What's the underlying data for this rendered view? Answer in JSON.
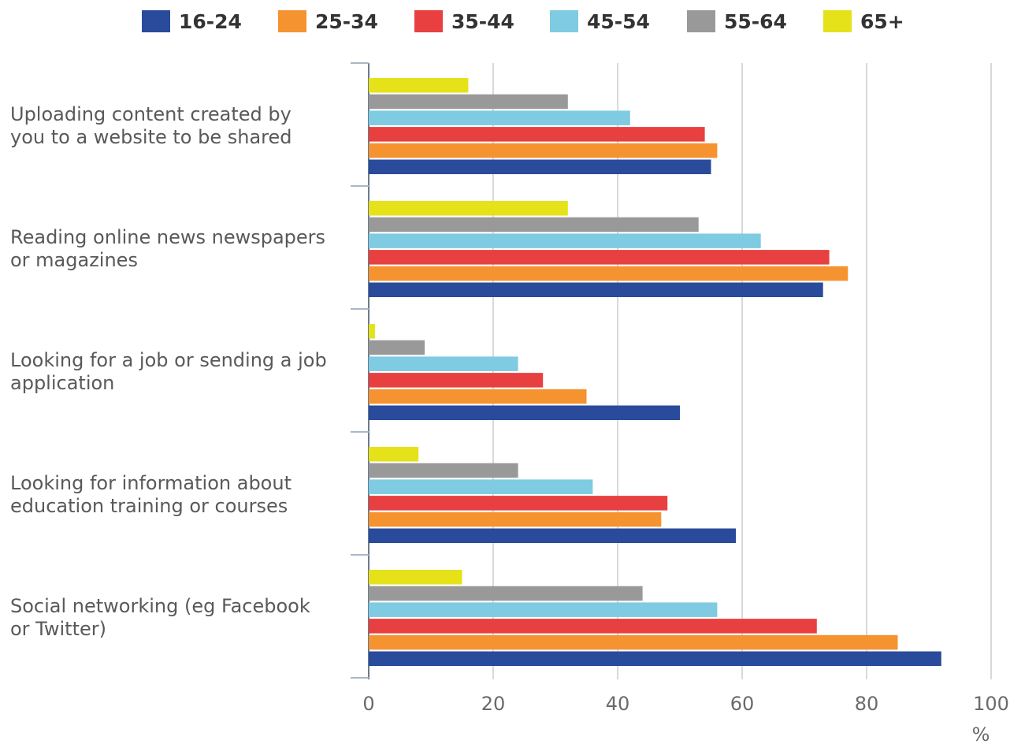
{
  "chart_data": {
    "type": "bar",
    "orientation": "horizontal",
    "categories": [
      [
        "Uploading content created by",
        "you to a website to be shared"
      ],
      [
        "Reading online news newspapers",
        "or magazines"
      ],
      [
        "Looking for a job or sending a job",
        "application"
      ],
      [
        "Looking for information about",
        "education training or courses"
      ],
      [
        "Social networking (eg Facebook",
        "or Twitter)"
      ]
    ],
    "series": [
      {
        "name": "16-24",
        "color": "#2a4b9b",
        "values": [
          55,
          73,
          50,
          59,
          92
        ]
      },
      {
        "name": "25-34",
        "color": "#f59331",
        "values": [
          56,
          77,
          35,
          47,
          85
        ]
      },
      {
        "name": "35-44",
        "color": "#e84040",
        "values": [
          54,
          74,
          28,
          48,
          72
        ]
      },
      {
        "name": "45-54",
        "color": "#7ecbe2",
        "values": [
          42,
          63,
          24,
          36,
          56
        ]
      },
      {
        "name": "55-64",
        "color": "#999999",
        "values": [
          32,
          53,
          9,
          24,
          44
        ]
      },
      {
        "name": "65+",
        "color": "#e5e21a",
        "values": [
          16,
          32,
          1,
          8,
          15
        ]
      }
    ],
    "xlim": [
      0,
      100
    ],
    "xticks": [
      "0",
      "20",
      "40",
      "60",
      "80",
      "100"
    ],
    "xlabel": "%",
    "grid": true,
    "legend_position": "top"
  }
}
